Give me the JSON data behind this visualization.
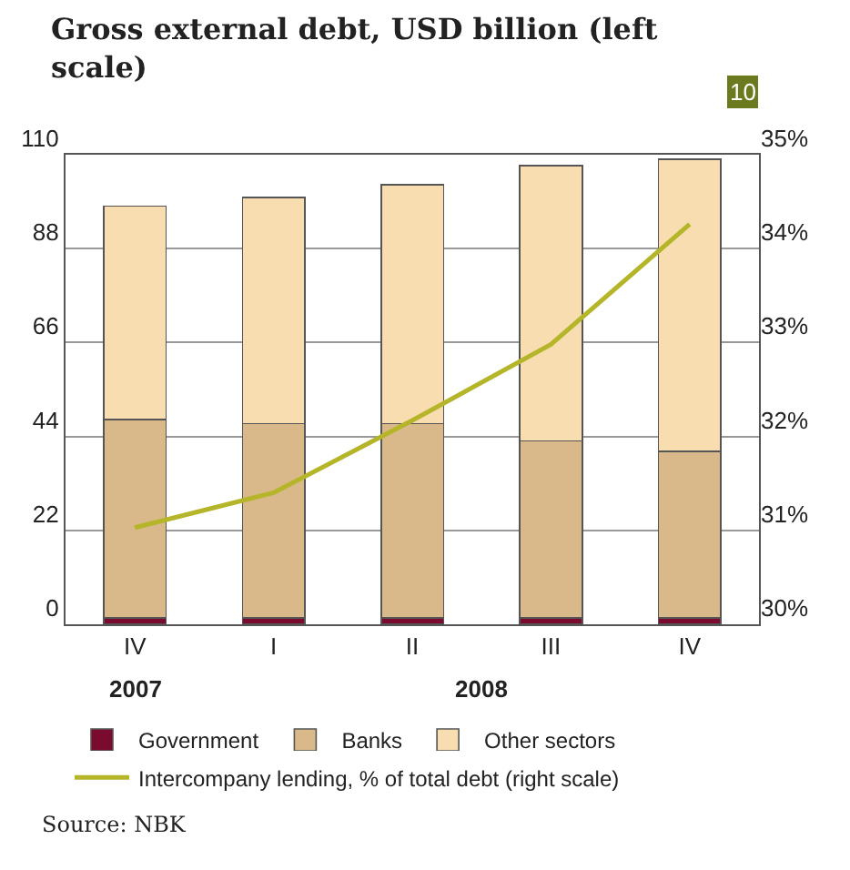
{
  "chart_data": {
    "type": "bar",
    "title": "Gross external debt, USD billion (left scale)",
    "stacked": true,
    "categories": [
      "IV",
      "I",
      "II",
      "III",
      "IV"
    ],
    "series": [
      {
        "name": "Government",
        "color": "#7a0a2e",
        "values": [
          1.5,
          1.5,
          1.5,
          1.5,
          1.5
        ]
      },
      {
        "name": "Banks",
        "color": "#d9b98a",
        "values": [
          46.5,
          45.5,
          45.5,
          41.5,
          39
        ]
      },
      {
        "name": "Other sectors",
        "color": "#f8ddb0",
        "values": [
          50,
          53,
          56,
          64.5,
          68.5
        ]
      },
      {
        "name": "Intercompany lending, % of total debt (right scale)",
        "type": "line",
        "axis": "y2",
        "color": "#b5b52a",
        "values": [
          31.03,
          31.4,
          32.17,
          32.98,
          34.26
        ]
      }
    ],
    "ylim": [
      0,
      110
    ],
    "yticks": [
      0,
      22,
      44,
      66,
      88,
      110
    ],
    "y2lim": [
      30,
      35
    ],
    "y2ticks": [
      {
        "value": 30,
        "label": "30%"
      },
      {
        "value": 31,
        "label": "31%"
      },
      {
        "value": 32,
        "label": "32%"
      },
      {
        "value": 33,
        "label": "33%"
      },
      {
        "value": 34,
        "label": "34%"
      },
      {
        "value": 35,
        "label": "35%"
      }
    ],
    "grid": "y",
    "legend": "bottom",
    "marker": "none",
    "annotations": [
      "10",
      "2007",
      "2008",
      "Source: NBK"
    ]
  }
}
